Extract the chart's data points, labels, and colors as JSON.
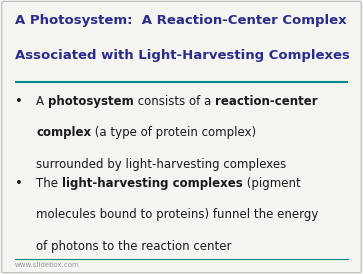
{
  "title_line1": "A Photosystem:  A Reaction-Center Complex",
  "title_line2": "Associated with Light-Harvesting Complexes",
  "title_color": "#2B2B8B",
  "title_fontsize": 9.5,
  "separator_color": "#008B8B",
  "background_color": "#F4F4F0",
  "border_color": "#BBBBBB",
  "bullet_color": "#1a1a1a",
  "bullet_fontsize": 8.5,
  "bullet1_lines": [
    [
      {
        "text": "A ",
        "bold": false
      },
      {
        "text": "photosystem",
        "bold": true
      },
      {
        "text": " consists of a ",
        "bold": false
      },
      {
        "text": "reaction-center",
        "bold": true
      }
    ],
    [
      {
        "text": "complex",
        "bold": true
      },
      {
        "text": " (a type of protein complex)",
        "bold": false
      }
    ],
    [
      {
        "text": "surrounded by light-harvesting complexes",
        "bold": false
      }
    ]
  ],
  "bullet2_lines": [
    [
      {
        "text": "The ",
        "bold": false
      },
      {
        "text": "light-harvesting complexes",
        "bold": true
      },
      {
        "text": " (pigment",
        "bold": false
      }
    ],
    [
      {
        "text": "molecules bound to proteins) funnel the energy",
        "bold": false
      }
    ],
    [
      {
        "text": "of photons to the reaction center",
        "bold": false
      }
    ]
  ],
  "footer_text": "www.slidebox.com",
  "footer_fontsize": 5.0,
  "footer_color": "#999999",
  "fig_width": 3.63,
  "fig_height": 2.74,
  "dpi": 100
}
